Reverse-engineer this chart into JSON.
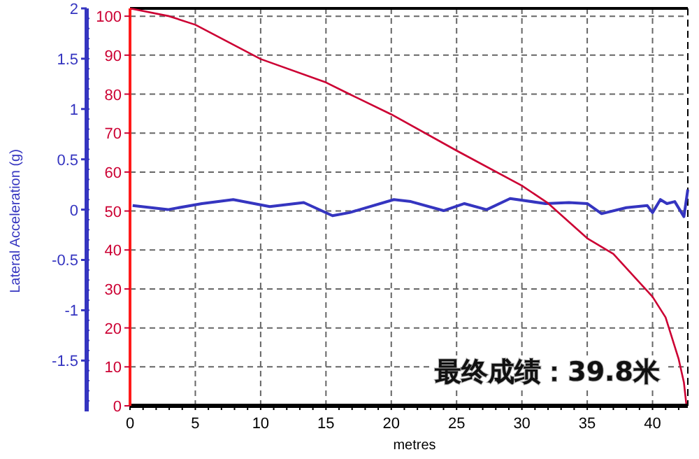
{
  "chart_data": {
    "type": "line",
    "xlabel": "metres",
    "ylabel": "Lateral Acceleration (g)",
    "annotations": [
      "最终成绩：39.8米"
    ],
    "xlim": [
      0,
      42.7
    ],
    "xticks": [
      0,
      5,
      10,
      15,
      20,
      25,
      30,
      35,
      40
    ],
    "ylim": [
      -1.95,
      2
    ],
    "yticks": [
      -1.5,
      -1,
      -0.5,
      0,
      0.5,
      1,
      1.5,
      2
    ],
    "y2lim": [
      0,
      102
    ],
    "y2ticks": [
      0,
      10,
      20,
      30,
      40,
      50,
      60,
      70,
      80,
      90,
      100
    ],
    "grid": true,
    "series": [
      {
        "color": "#3535c0",
        "axis": "y",
        "x": [
          0.2,
          2.9,
          5.5,
          7.9,
          10.7,
          13.3,
          15.5,
          16.8,
          20.2,
          21.5,
          24,
          25.6,
          27.3,
          29.1,
          31.8,
          33.6,
          35,
          36.1,
          38,
          39.6,
          40,
          40.6,
          41.1,
          41.7,
          42.4,
          42.7
        ],
        "values": [
          0.04,
          0,
          0.06,
          0.1,
          0.03,
          0.07,
          -0.06,
          -0.03,
          0.1,
          0.08,
          -0.01,
          0.06,
          0,
          0.11,
          0.06,
          0.07,
          0.06,
          -0.04,
          0.02,
          0.04,
          -0.03,
          0.1,
          0.06,
          0.08,
          -0.07,
          0.2
        ]
      },
      {
        "color": "#cc0033",
        "axis": "y2",
        "x": [
          0,
          3,
          5,
          10,
          15,
          16.8,
          20,
          25,
          30,
          32,
          35,
          37,
          40,
          41,
          42,
          42.4,
          42.6
        ],
        "values": [
          102,
          100,
          97.8,
          89,
          83,
          80,
          74.8,
          65.5,
          56.5,
          52,
          43,
          39,
          28,
          22.7,
          12,
          6,
          0
        ]
      }
    ]
  }
}
